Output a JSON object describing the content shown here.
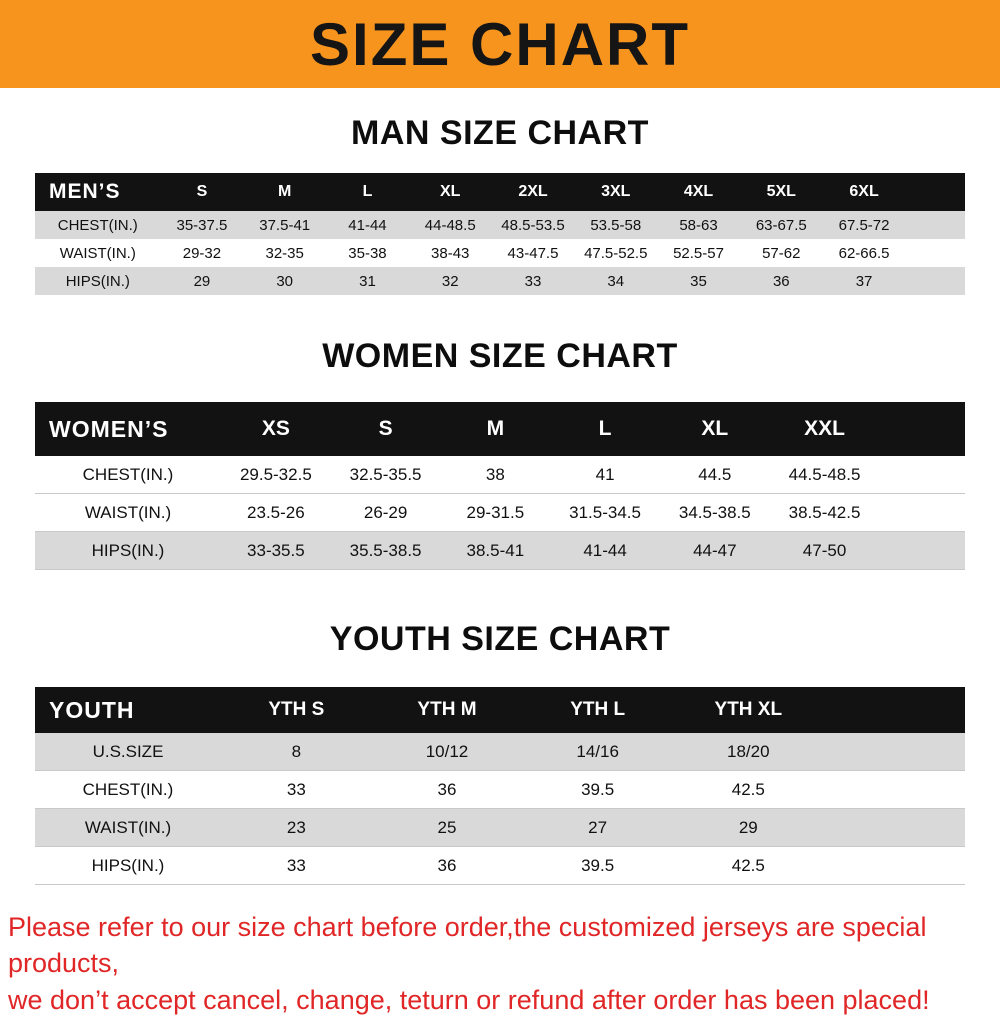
{
  "banner": {
    "title": "SIZE CHART"
  },
  "man_section": {
    "heading": "MAN SIZE CHART",
    "table": {
      "header": [
        "MEN’S",
        "S",
        "M",
        "L",
        "XL",
        "2XL",
        "3XL",
        "4XL",
        "5XL",
        "6XL"
      ],
      "rows": [
        [
          "CHEST(IN.)",
          "35-37.5",
          "37.5-41",
          "41-44",
          "44-48.5",
          "48.5-53.5",
          "53.5-58",
          "58-63",
          "63-67.5",
          "67.5-72"
        ],
        [
          "WAIST(IN.)",
          "29-32",
          "32-35",
          "35-38",
          "38-43",
          "43-47.5",
          "47.5-52.5",
          "52.5-57",
          "57-62",
          "62-66.5"
        ],
        [
          "HIPS(IN.)",
          "29",
          "30",
          "31",
          "32",
          "33",
          "34",
          "35",
          "36",
          "37"
        ]
      ]
    }
  },
  "women_section": {
    "heading": "WOMEN SIZE CHART",
    "table": {
      "header": [
        "WOMEN’S",
        "XS",
        "S",
        "M",
        "L",
        "XL",
        "XXL"
      ],
      "rows": [
        [
          "CHEST(IN.)",
          "29.5-32.5",
          "32.5-35.5",
          "38",
          "41",
          "44.5",
          "44.5-48.5"
        ],
        [
          "WAIST(IN.)",
          "23.5-26",
          "26-29",
          "29-31.5",
          "31.5-34.5",
          "34.5-38.5",
          "38.5-42.5"
        ],
        [
          "HIPS(IN.)",
          "33-35.5",
          "35.5-38.5",
          "38.5-41",
          "41-44",
          "44-47",
          "47-50"
        ]
      ]
    }
  },
  "youth_section": {
    "heading": "YOUTH SIZE CHART",
    "table": {
      "header": [
        "YOUTH",
        "YTH S",
        "YTH M",
        "YTH L",
        "YTH XL"
      ],
      "rows": [
        [
          "U.S.SIZE",
          "8",
          "10/12",
          "14/16",
          "18/20"
        ],
        [
          "CHEST(IN.)",
          "33",
          "36",
          "39.5",
          "42.5"
        ],
        [
          "WAIST(IN.)",
          "23",
          "25",
          "27",
          "29"
        ],
        [
          "HIPS(IN.)",
          "33",
          "36",
          "39.5",
          "42.5"
        ]
      ]
    }
  },
  "disclaimer": {
    "lines": [
      "Please refer to our size chart before order,the customized jerseys are special products,",
      "we don’t accept cancel, change, teturn or refund after order has been placed!"
    ]
  },
  "colors": {
    "banner_bg": "#F7941E",
    "table_header_bg": "#121212",
    "row_stripe": "#D9D9D9",
    "disclaimer_text": "#E02626"
  }
}
